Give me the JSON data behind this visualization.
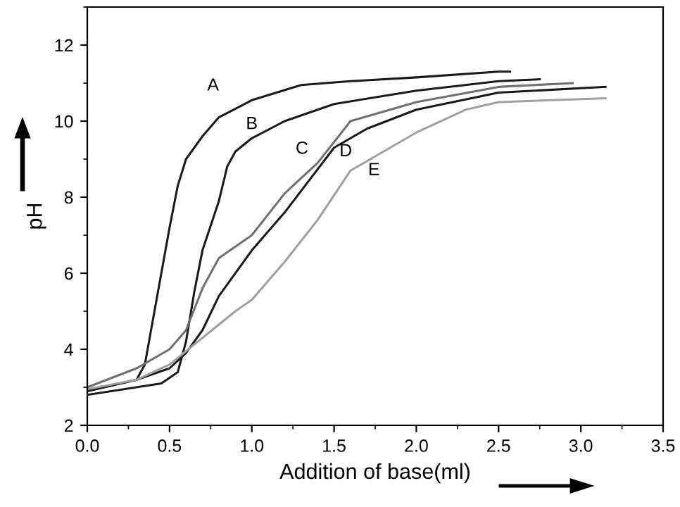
{
  "chart_data": {
    "type": "line",
    "xlabel": "Addition of base(ml)",
    "ylabel": "pH",
    "xlim": [
      0,
      3.5
    ],
    "ylim": [
      2,
      13
    ],
    "xticks": [
      {
        "value": 0,
        "label": "0.0"
      },
      0.5,
      {
        "value": 1,
        "label": "1.0"
      },
      1.5,
      {
        "value": 2,
        "label": "2.0"
      },
      2.5,
      {
        "value": 3,
        "label": "3.0"
      },
      3.5
    ],
    "yticks": [
      2,
      4,
      6,
      8,
      10,
      12
    ],
    "grid": false,
    "legend": false,
    "marker": "none",
    "line_style": "solid",
    "series": [
      {
        "color": "#1a1a1a",
        "x": [
          0,
          0.3,
          0.35,
          0.4,
          0.45,
          0.5,
          0.55,
          0.6,
          0.7,
          0.8,
          1.0,
          1.3,
          1.6,
          2.0,
          2.5,
          2.57
        ],
        "values": [
          2.9,
          3.2,
          3.6,
          4.8,
          6.0,
          7.2,
          8.3,
          9.0,
          9.6,
          10.1,
          10.55,
          10.95,
          11.05,
          11.15,
          11.3,
          11.3
        ]
      },
      {
        "color": "#1a1a1a",
        "x": [
          0,
          0.45,
          0.55,
          0.6,
          0.65,
          0.7,
          0.8,
          0.85,
          0.9,
          1.0,
          1.2,
          1.5,
          2.0,
          2.5,
          2.75
        ],
        "values": [
          2.8,
          3.1,
          3.4,
          4.2,
          5.5,
          6.6,
          7.9,
          8.8,
          9.2,
          9.55,
          10.0,
          10.45,
          10.8,
          11.05,
          11.1
        ]
      },
      {
        "color": "#707070",
        "x": [
          0,
          0.3,
          0.5,
          0.6,
          0.7,
          0.8,
          1.0,
          1.2,
          1.4,
          1.6,
          2.0,
          2.5,
          2.95
        ],
        "values": [
          3.0,
          3.5,
          4.0,
          4.5,
          5.6,
          6.4,
          7.0,
          8.1,
          8.9,
          10.0,
          10.5,
          10.9,
          11.0
        ]
      },
      {
        "color": "#1a1a1a",
        "x": [
          0,
          0.3,
          0.5,
          0.6,
          0.7,
          0.8,
          1.0,
          1.2,
          1.5,
          1.7,
          2.0,
          2.5,
          3.15
        ],
        "values": [
          2.9,
          3.2,
          3.5,
          3.9,
          4.5,
          5.4,
          6.6,
          7.6,
          9.3,
          9.8,
          10.3,
          10.75,
          10.9
        ]
      },
      {
        "color": "#a0a0a0",
        "x": [
          0,
          0.3,
          0.5,
          0.7,
          0.9,
          1.0,
          1.2,
          1.4,
          1.6,
          1.8,
          2.0,
          2.3,
          2.5,
          3.15
        ],
        "values": [
          2.95,
          3.2,
          3.6,
          4.3,
          5.0,
          5.3,
          6.3,
          7.4,
          8.7,
          9.2,
          9.7,
          10.3,
          10.5,
          10.6
        ]
      }
    ],
    "annotations": [
      {
        "text": "A",
        "x": 0.8,
        "y": 10.1
      },
      {
        "text": "B",
        "x": 1.0,
        "y": 9.55
      },
      {
        "text": "C",
        "x": 1.4,
        "y": 8.9
      },
      {
        "text": "D",
        "x": 1.5,
        "y": 9.3
      },
      {
        "text": "E",
        "x": 1.6,
        "y": 8.7
      }
    ]
  }
}
